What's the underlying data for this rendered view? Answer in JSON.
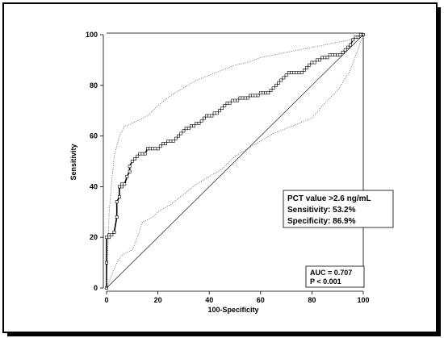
{
  "chart_data": {
    "type": "line",
    "xlabel": "100-Specificity",
    "ylabel": "Sensitivity",
    "xlim": [
      0,
      100
    ],
    "ylim": [
      0,
      100
    ],
    "x_ticks": [
      0,
      20,
      40,
      60,
      80,
      100
    ],
    "y_ticks": [
      0,
      20,
      40,
      60,
      80,
      100
    ],
    "grid": false,
    "series": [
      {
        "name": "",
        "style": "solid",
        "markers": true,
        "x": [
          0,
          0,
          0,
          1,
          1,
          2,
          3,
          3,
          4,
          4,
          5,
          5,
          6,
          6,
          7,
          8,
          9,
          9,
          10,
          11,
          12,
          13,
          14,
          15,
          16,
          17,
          18,
          19,
          20,
          21,
          22,
          23,
          24,
          25,
          26,
          27,
          28,
          29,
          30,
          31,
          32,
          33,
          34,
          35,
          36,
          37,
          38,
          39,
          40,
          41,
          42,
          43,
          44,
          45,
          46,
          47,
          48,
          49,
          50,
          51,
          52,
          53,
          54,
          55,
          56,
          57,
          58,
          59,
          60,
          61,
          62,
          63,
          64,
          65,
          66,
          67,
          68,
          69,
          70,
          71,
          72,
          73,
          74,
          75,
          76,
          77,
          78,
          79,
          80,
          81,
          82,
          83,
          84,
          85,
          86,
          87,
          88,
          89,
          90,
          91,
          92,
          93,
          94,
          95,
          96,
          97,
          98,
          99,
          100
        ],
        "y": [
          0,
          10,
          20,
          20,
          21,
          21,
          22,
          22,
          28,
          34,
          36,
          40,
          40,
          41,
          41,
          44,
          46,
          48,
          50,
          51,
          52,
          53,
          53,
          53,
          55,
          55,
          55,
          55,
          55,
          56,
          57,
          57,
          58,
          58,
          58,
          59,
          60,
          61,
          62,
          63,
          63,
          64,
          64,
          65,
          65,
          66,
          67,
          68,
          68,
          68,
          69,
          69,
          70,
          71,
          72,
          73,
          73,
          74,
          74,
          74,
          75,
          75,
          75,
          75,
          76,
          76,
          76,
          76,
          77,
          77,
          77,
          77,
          78,
          79,
          80,
          81,
          82,
          83,
          84,
          85,
          85,
          85,
          85,
          85,
          85,
          86,
          87,
          88,
          89,
          89,
          90,
          90,
          91,
          91,
          91,
          92,
          92,
          92,
          92,
          92,
          93,
          94,
          95,
          96,
          98,
          99,
          99,
          100,
          100
        ]
      },
      {
        "name": "",
        "style": "dotted",
        "x": [
          0,
          1,
          2,
          3,
          4,
          5,
          6,
          7,
          8,
          10,
          12,
          14,
          16,
          18,
          20,
          25,
          30,
          35,
          40,
          45,
          50,
          55,
          60,
          65,
          70,
          75,
          80,
          85,
          90,
          95,
          100
        ],
        "y": [
          2,
          30,
          42,
          52,
          56,
          60,
          62,
          64,
          64,
          65,
          66,
          67,
          68,
          70,
          72,
          76,
          79,
          82,
          84,
          86,
          88,
          89,
          91,
          92,
          93,
          94,
          95,
          96,
          97,
          98,
          100
        ]
      },
      {
        "name": "",
        "style": "dotted",
        "x": [
          0,
          2,
          4,
          6,
          8,
          10,
          12,
          14,
          16,
          18,
          20,
          25,
          30,
          35,
          40,
          45,
          50,
          55,
          60,
          65,
          70,
          75,
          80,
          85,
          90,
          95,
          100
        ],
        "y": [
          0,
          5,
          10,
          13,
          14,
          15,
          20,
          26,
          27,
          28,
          30,
          33,
          37,
          41,
          44,
          47,
          52,
          55,
          58,
          61,
          63,
          65,
          67,
          73,
          78,
          86,
          100
        ]
      },
      {
        "name": "",
        "style": "reference",
        "x": [
          0,
          100
        ],
        "y": [
          0,
          100
        ]
      }
    ],
    "annotations": {
      "criterion_box": [
        "PCT value >2.6 ng/mL",
        "Sensitivity: 53.2%",
        "Specificity: 86.9%"
      ],
      "auc_box": [
        "AUC = 0.707",
        "P < 0.001"
      ]
    }
  }
}
